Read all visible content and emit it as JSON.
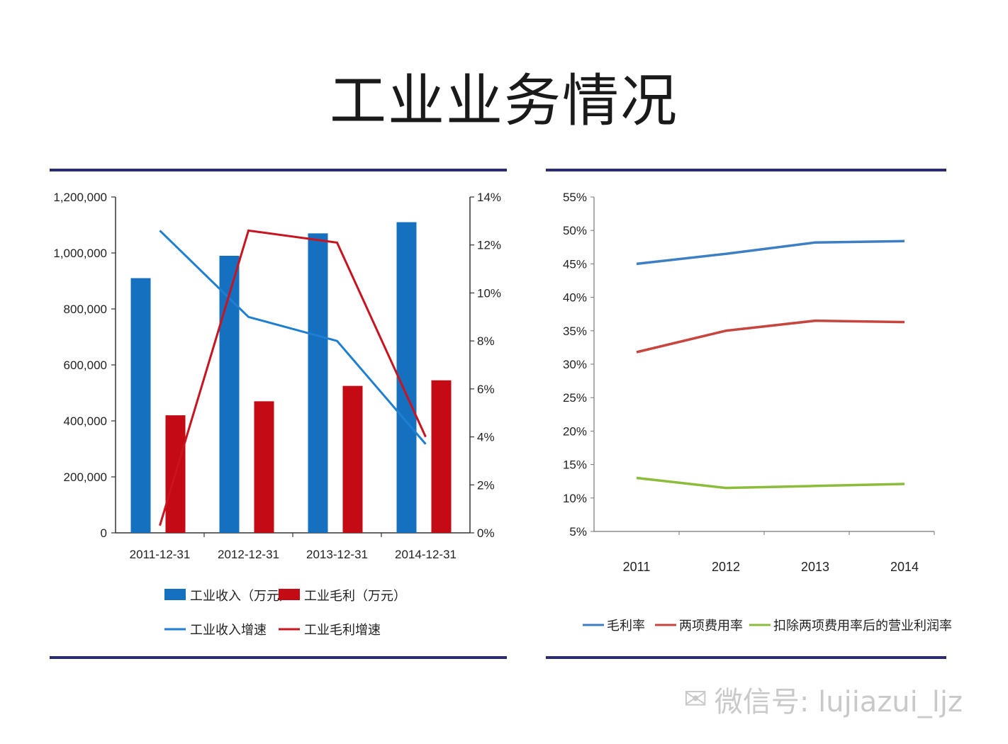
{
  "page": {
    "title": "工业业务情况",
    "watermark": "微信号: lujiazui_ljz"
  },
  "chart_data": [
    {
      "type": "bar",
      "categories": [
        "2011-12-31",
        "2012-12-31",
        "2013-12-31",
        "2014-12-31"
      ],
      "y_left": {
        "ticks": [
          "0",
          "200,000",
          "400,000",
          "600,000",
          "800,000",
          "1,000,000",
          "1,200,000"
        ],
        "range": [
          0,
          1200000
        ]
      },
      "y_right": {
        "ticks": [
          "0%",
          "2%",
          "4%",
          "6%",
          "8%",
          "10%",
          "12%",
          "14%"
        ],
        "range": [
          0,
          14
        ]
      },
      "series": [
        {
          "name": "工业收入（万元）",
          "type": "bar",
          "axis": "left",
          "color": "#1570c0",
          "values": [
            910000,
            990000,
            1070000,
            1110000
          ]
        },
        {
          "name": "工业毛利（万元）",
          "type": "bar",
          "axis": "left",
          "color": "#c40a14",
          "values": [
            420000,
            470000,
            525000,
            545000
          ]
        },
        {
          "name": "工业收入增速",
          "type": "line",
          "axis": "right",
          "color": "#1e7fd0",
          "values": [
            12.6,
            9.0,
            8.0,
            3.7
          ]
        },
        {
          "name": "工业毛利增速",
          "type": "line",
          "axis": "right",
          "color": "#c8141e",
          "values": [
            0.3,
            12.6,
            12.1,
            4.0
          ]
        }
      ],
      "legend_position": "bottom"
    },
    {
      "type": "line",
      "categories": [
        "2011",
        "2012",
        "2013",
        "2014"
      ],
      "y": {
        "ticks": [
          "5%",
          "10%",
          "15%",
          "20%",
          "25%",
          "30%",
          "35%",
          "40%",
          "45%",
          "50%",
          "55%"
        ],
        "range": [
          5,
          55
        ]
      },
      "series": [
        {
          "name": "毛利率",
          "color": "#3e7ec4",
          "values": [
            45.0,
            46.5,
            48.2,
            48.4
          ]
        },
        {
          "name": "两项费用率",
          "color": "#c6453f",
          "values": [
            31.8,
            35.0,
            36.5,
            36.3
          ]
        },
        {
          "name": "扣除两项费用率后的营业利润率",
          "color": "#8cbc3c",
          "values": [
            13.0,
            11.5,
            11.8,
            12.1
          ]
        }
      ],
      "legend_position": "bottom"
    }
  ]
}
